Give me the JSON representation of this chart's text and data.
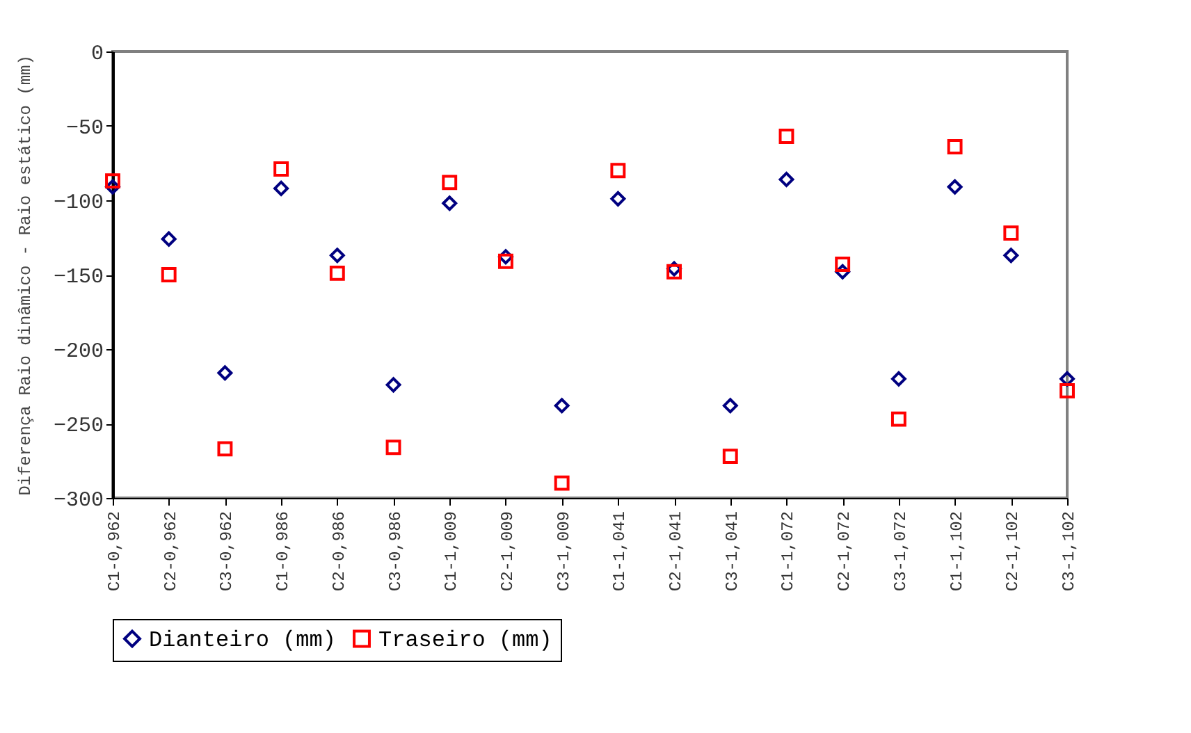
{
  "chart_data": {
    "type": "scatter",
    "ylabel": "Diferença Raio dinâmico - Raio estático (mm)",
    "categories": [
      "C1-0,962",
      "C2-0,962",
      "C3-0,962",
      "C1-0,986",
      "C2-0,986",
      "C3-0,986",
      "C1-1,009",
      "C2-1,009",
      "C3-1,009",
      "C1-1,041",
      "C2-1,041",
      "C3-1,041",
      "C1-1,072",
      "C2-1,072",
      "C3-1,072",
      "C1-1,102",
      "C2-1,102",
      "C3-1,102"
    ],
    "series": [
      {
        "name": "Dianteiro (mm)",
        "color": "#000080",
        "marker": "diamond",
        "values": [
          -91,
          -126,
          -216,
          -92,
          -137,
          -224,
          -102,
          -138,
          -238,
          -99,
          -146,
          -238,
          -86,
          -148,
          -220,
          -91,
          -137,
          -220
        ]
      },
      {
        "name": "Traseiro (mm)",
        "color": "#ff0000",
        "marker": "square",
        "values": [
          -87,
          -150,
          -267,
          -79,
          -149,
          -266,
          -88,
          -141,
          -290,
          -80,
          -148,
          -272,
          -57,
          -143,
          -247,
          -64,
          -122,
          -228
        ]
      }
    ],
    "ylim": [
      -300,
      0
    ],
    "yticks": [
      -300,
      -250,
      -200,
      -150,
      -100,
      -50,
      0
    ],
    "grid": false,
    "legend": "bottom"
  }
}
